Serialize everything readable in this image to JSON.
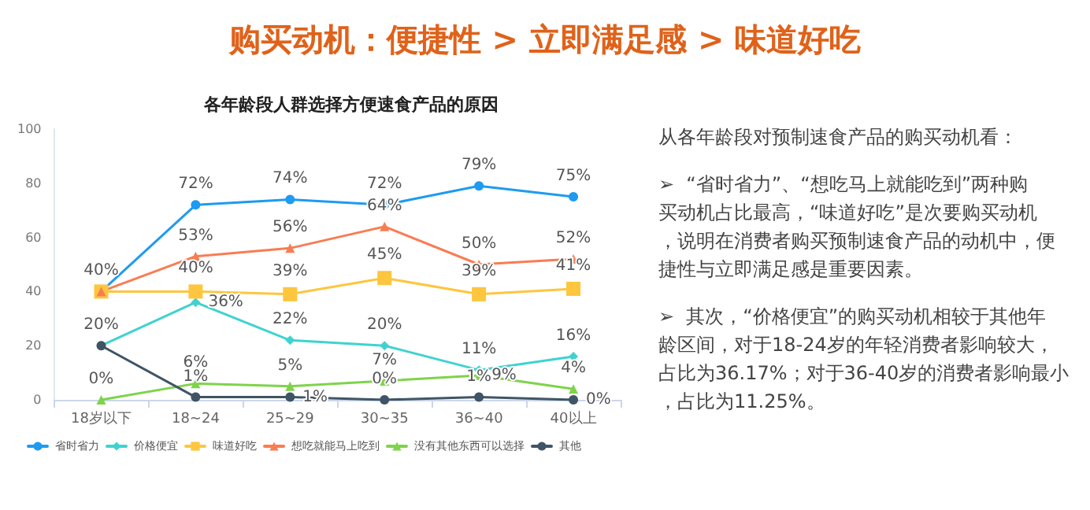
{
  "chart_data": {
    "type": "line",
    "title": "购买动机：便捷性 > 立即满足感 > 味道好吃",
    "subtitle": "各年龄段人群选择方便速食产品的原因",
    "categories": [
      "18岁以下",
      "18~24",
      "25~29",
      "30~35",
      "36~40",
      "40以上"
    ],
    "series": [
      {
        "name": "省时省力",
        "color": "#1e9bf0",
        "marker": "circle",
        "values": [
          40,
          72,
          74,
          72,
          79,
          75
        ],
        "value_labels": [
          "40%",
          "72%",
          "74%",
          "72%",
          "79%",
          "75%"
        ]
      },
      {
        "name": "价格便宜",
        "color": "#3fd3cf",
        "marker": "diamond",
        "values": [
          20,
          36,
          22,
          20,
          11,
          16
        ],
        "value_labels": [
          null,
          "36%",
          "22%",
          "20%",
          "11%",
          "16%"
        ]
      },
      {
        "name": "味道好吃",
        "color": "#fdc63e",
        "marker": "square",
        "values": [
          40,
          40,
          39,
          45,
          39,
          41
        ],
        "value_labels": [
          null,
          "40%",
          "39%",
          "45%",
          "39%",
          "41%"
        ]
      },
      {
        "name": "想吃就能马上吃到",
        "color": "#f97c52",
        "marker": "triangle",
        "values": [
          40,
          53,
          56,
          64,
          50,
          52
        ],
        "value_labels": [
          null,
          "53%",
          "56%",
          "64%",
          "50%",
          "52%"
        ]
      },
      {
        "name": "没有其他东西可以选择",
        "color": "#7ed34b",
        "marker": "triangle",
        "values": [
          0,
          6,
          5,
          7,
          9,
          4
        ],
        "value_labels": [
          "0%",
          "6%",
          "5%",
          "7%",
          "9%",
          "4%"
        ]
      },
      {
        "name": "其他",
        "color": "#3f5566",
        "marker": "circle",
        "values": [
          20,
          1,
          1,
          0,
          1,
          0
        ],
        "value_labels": [
          "20%",
          "1%",
          "1%",
          "0%",
          "1%",
          "0%"
        ]
      }
    ],
    "ylim": [
      0,
      100
    ],
    "yticks": [
      0,
      20,
      40,
      60,
      80,
      100
    ],
    "grid": false,
    "legend": "bottom",
    "line_style": "solid",
    "annotations": [
      "从各年龄段对预制速食产品的购买动机看：",
      "➢  “省时省力”、“想吃马上就能吃到”两种购买动机占比最高，“味道好吃”是次要购买动机，说明在消费者购买预制速食产品的动机中，便捷性与立即满足感是重要因素。",
      "➢  其次，“价格便宜”的购买动机相较于其他年龄区间，对于18-24岁的年轻消费者影响较大，占比为36.17%；对于36-40岁的消费者影响最小，占比为11.25%。"
    ]
  }
}
